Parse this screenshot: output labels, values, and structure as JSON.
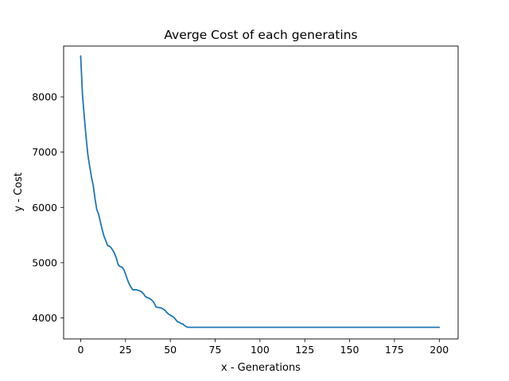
{
  "chart_data": {
    "type": "line",
    "title": "Averge Cost of each generatins",
    "xlabel": "x - Generations",
    "ylabel": "y - Cost",
    "xlim": [
      -9.5,
      210.5
    ],
    "ylim": [
      3620,
      8920
    ],
    "xticks": [
      0,
      25,
      50,
      75,
      100,
      125,
      150,
      175,
      200
    ],
    "yticks": [
      4000,
      5000,
      6000,
      7000,
      8000
    ],
    "grid": false,
    "series": [
      {
        "color": "#1f77b4",
        "x": [
          0,
          1,
          2,
          3,
          4,
          5,
          6,
          7,
          8,
          9,
          10,
          11,
          12,
          13,
          14,
          15,
          16,
          17,
          18,
          19,
          20,
          21,
          22,
          23,
          24,
          25,
          26,
          27,
          28,
          29,
          30,
          31,
          32,
          33,
          34,
          35,
          36,
          37,
          38,
          39,
          40,
          41,
          42,
          43,
          44,
          45,
          46,
          47,
          48,
          49,
          50,
          51,
          52,
          53,
          54,
          55,
          56,
          57,
          58,
          59,
          60,
          61,
          62,
          63,
          64,
          65,
          70,
          80,
          90,
          100,
          110,
          120,
          130,
          140,
          150,
          160,
          170,
          180,
          190,
          200
        ],
        "y": [
          8740,
          8050,
          7650,
          7280,
          6960,
          6750,
          6550,
          6400,
          6160,
          5960,
          5880,
          5740,
          5600,
          5480,
          5400,
          5310,
          5300,
          5270,
          5220,
          5160,
          5070,
          4960,
          4930,
          4920,
          4880,
          4800,
          4700,
          4620,
          4560,
          4510,
          4510,
          4510,
          4500,
          4490,
          4470,
          4440,
          4390,
          4370,
          4360,
          4340,
          4310,
          4270,
          4200,
          4190,
          4185,
          4180,
          4160,
          4140,
          4100,
          4070,
          4050,
          4030,
          4010,
          3970,
          3930,
          3920,
          3900,
          3890,
          3860,
          3840,
          3830,
          3830,
          3830,
          3830,
          3830,
          3830,
          3830,
          3830,
          3830,
          3830,
          3830,
          3830,
          3830,
          3830,
          3830,
          3830,
          3830,
          3830,
          3830,
          3830
        ]
      }
    ]
  }
}
